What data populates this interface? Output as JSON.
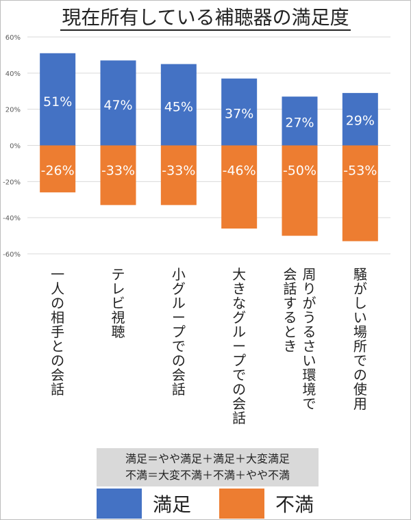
{
  "title": "現在所有している補聴器の満足度",
  "chart_data": {
    "type": "bar",
    "stacked": "diverging",
    "categories": [
      "一人の相手との会話",
      "テレビ視聴",
      "小グループでの会話",
      "大きなグループでの会話",
      "周りがうるさい環境で会話するとき",
      "騒がしい場所での使用"
    ],
    "category_lines": [
      [
        "一人の相手との会話"
      ],
      [
        "テレビ視聴"
      ],
      [
        "小グループでの会話"
      ],
      [
        "大きなグループでの会話"
      ],
      [
        "周りがうるさい環境で",
        "会話するとき"
      ],
      [
        "騒がしい場所での使用"
      ]
    ],
    "series": [
      {
        "name": "満足",
        "color": "#4472C4",
        "values": [
          51,
          47,
          45,
          37,
          27,
          29
        ],
        "labels": [
          "51%",
          "47%",
          "45%",
          "37%",
          "27%",
          "29%"
        ]
      },
      {
        "name": "不満",
        "color": "#ED7D31",
        "values": [
          -26,
          -33,
          -33,
          -46,
          -50,
          -53
        ],
        "labels": [
          "-26%",
          "-33%",
          "-33%",
          "-46%",
          "-50%",
          "-53%"
        ]
      }
    ],
    "ylim": [
      -60,
      60
    ],
    "yticks": [
      60,
      40,
      20,
      0,
      -20,
      -40,
      -60
    ],
    "ytick_labels": [
      "60%",
      "40%",
      "20%",
      "0%",
      "-20%",
      "-40%",
      "-60%"
    ],
    "grid": true,
    "legend_position": "bottom"
  },
  "notes": [
    "満足＝やや満足＋満足＋大変満足",
    "不満＝大変不満＋不満＋やや不満"
  ]
}
